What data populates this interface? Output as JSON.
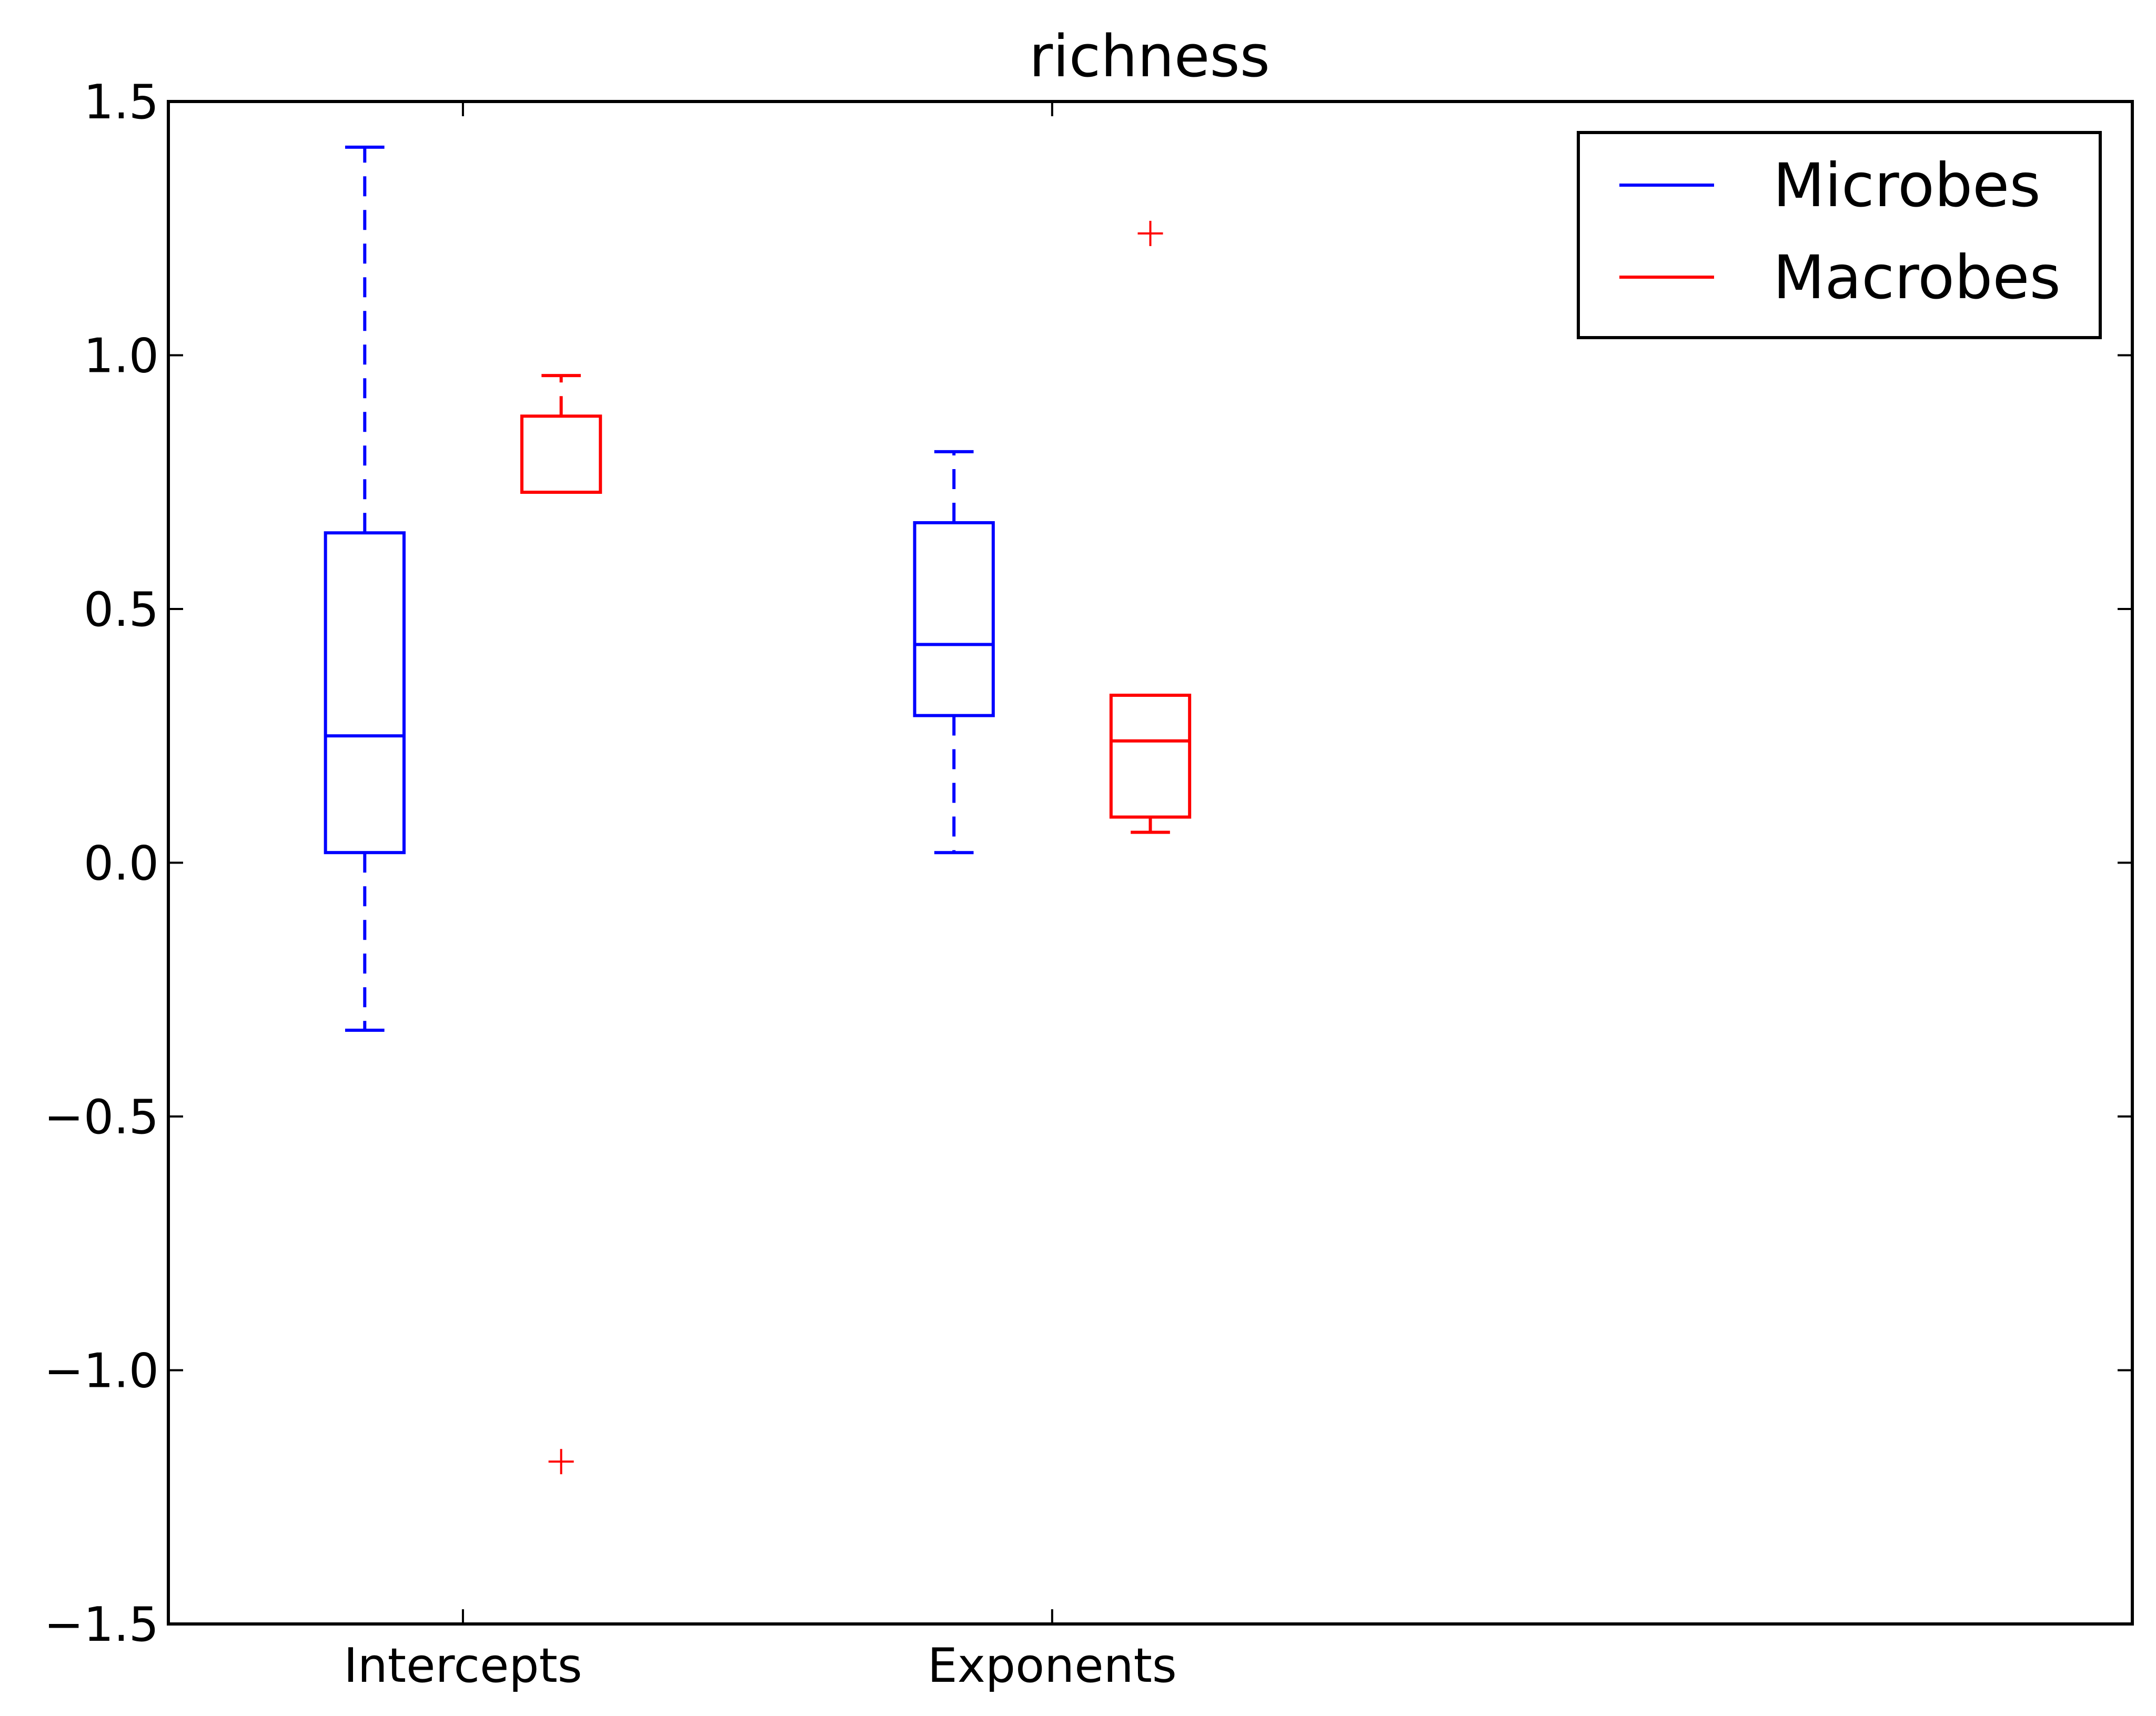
{
  "chart_data": {
    "type": "boxplot",
    "title": "richness",
    "xlabel": "",
    "ylabel": "",
    "ylim": [
      -1.5,
      1.5
    ],
    "xlim": [
      0,
      5
    ],
    "yticks": [
      -1.5,
      -1.0,
      -0.5,
      0.0,
      0.5,
      1.0,
      1.5
    ],
    "ytick_labels": [
      "−1.5",
      "−1.0",
      "−0.5",
      "0.0",
      "0.5",
      "1.0",
      "1.5"
    ],
    "categories": [
      "Intercepts",
      "Exponents"
    ],
    "category_positions": [
      0.75,
      2.25
    ],
    "grid": false,
    "legend_position": "top-right",
    "series": [
      {
        "name": "Microbes",
        "color": "#0000ff",
        "whisker_style": "dashed",
        "boxes": [
          {
            "category": "Intercepts",
            "position": 0.5,
            "whisker_low": -0.33,
            "q1": 0.02,
            "median": 0.25,
            "q3": 0.65,
            "whisker_high": 1.41,
            "outliers": []
          },
          {
            "category": "Exponents",
            "position": 2.0,
            "whisker_low": 0.02,
            "q1": 0.29,
            "median": 0.43,
            "q3": 0.67,
            "whisker_high": 0.81,
            "outliers": []
          }
        ]
      },
      {
        "name": "Macrobes",
        "color": "#ff0000",
        "whisker_style": "dashed",
        "boxes": [
          {
            "category": "Intercepts",
            "position": 1.0,
            "whisker_low": 0.73,
            "q1": 0.73,
            "median": 0.73,
            "q3": 0.88,
            "whisker_high": 0.96,
            "outliers": [
              -1.18
            ]
          },
          {
            "category": "Exponents",
            "position": 2.5,
            "whisker_low": 0.06,
            "q1": 0.09,
            "median": 0.24,
            "q3": 0.33,
            "whisker_high": 0.33,
            "outliers": [
              1.24
            ]
          }
        ]
      }
    ]
  }
}
